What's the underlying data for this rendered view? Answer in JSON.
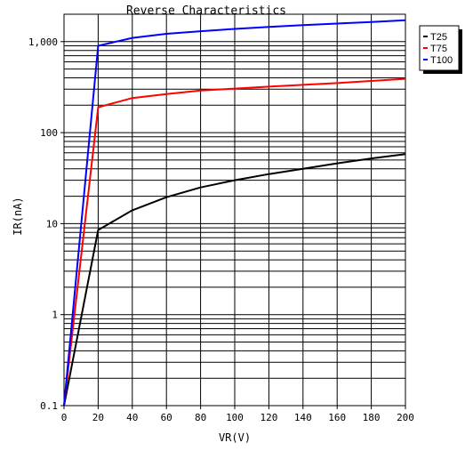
{
  "chart_data": {
    "type": "line",
    "title": "Reverse Characteristics",
    "xlabel": "VR(V)",
    "ylabel": "IR(nA)",
    "xlim": [
      0,
      200
    ],
    "ylim": [
      0.1,
      2000
    ],
    "yscale": "log",
    "grid": true,
    "legend_position": "top-right",
    "x_ticks": [
      0,
      20,
      40,
      60,
      80,
      100,
      120,
      140,
      160,
      180,
      200
    ],
    "x_tick_labels": [
      "0",
      "20",
      "40",
      "60",
      "80",
      "100",
      "120",
      "140",
      "160",
      "180",
      "200"
    ],
    "y_ticks": [
      0.1,
      1,
      10,
      100,
      1000
    ],
    "y_tick_labels": [
      "0.1",
      "1",
      "10",
      "100",
      "1,000"
    ],
    "series": [
      {
        "name": "T25",
        "color": "#000000",
        "x": [
          0,
          20,
          40,
          60,
          80,
          100,
          120,
          140,
          160,
          180,
          200
        ],
        "y": [
          0.1,
          8.5,
          14,
          19.5,
          25,
          30,
          35,
          40,
          46,
          52,
          58
        ]
      },
      {
        "name": "T75",
        "color": "#ff0000",
        "x": [
          0,
          20,
          40,
          60,
          80,
          100,
          120,
          140,
          160,
          180,
          200
        ],
        "y": [
          0.1,
          190,
          240,
          265,
          290,
          305,
          320,
          335,
          350,
          370,
          390
        ]
      },
      {
        "name": "T100",
        "color": "#0000ff",
        "x": [
          0,
          20,
          40,
          60,
          80,
          100,
          120,
          140,
          160,
          180,
          200
        ],
        "y": [
          0.1,
          900,
          1100,
          1220,
          1300,
          1380,
          1450,
          1520,
          1580,
          1640,
          1720
        ]
      }
    ]
  }
}
